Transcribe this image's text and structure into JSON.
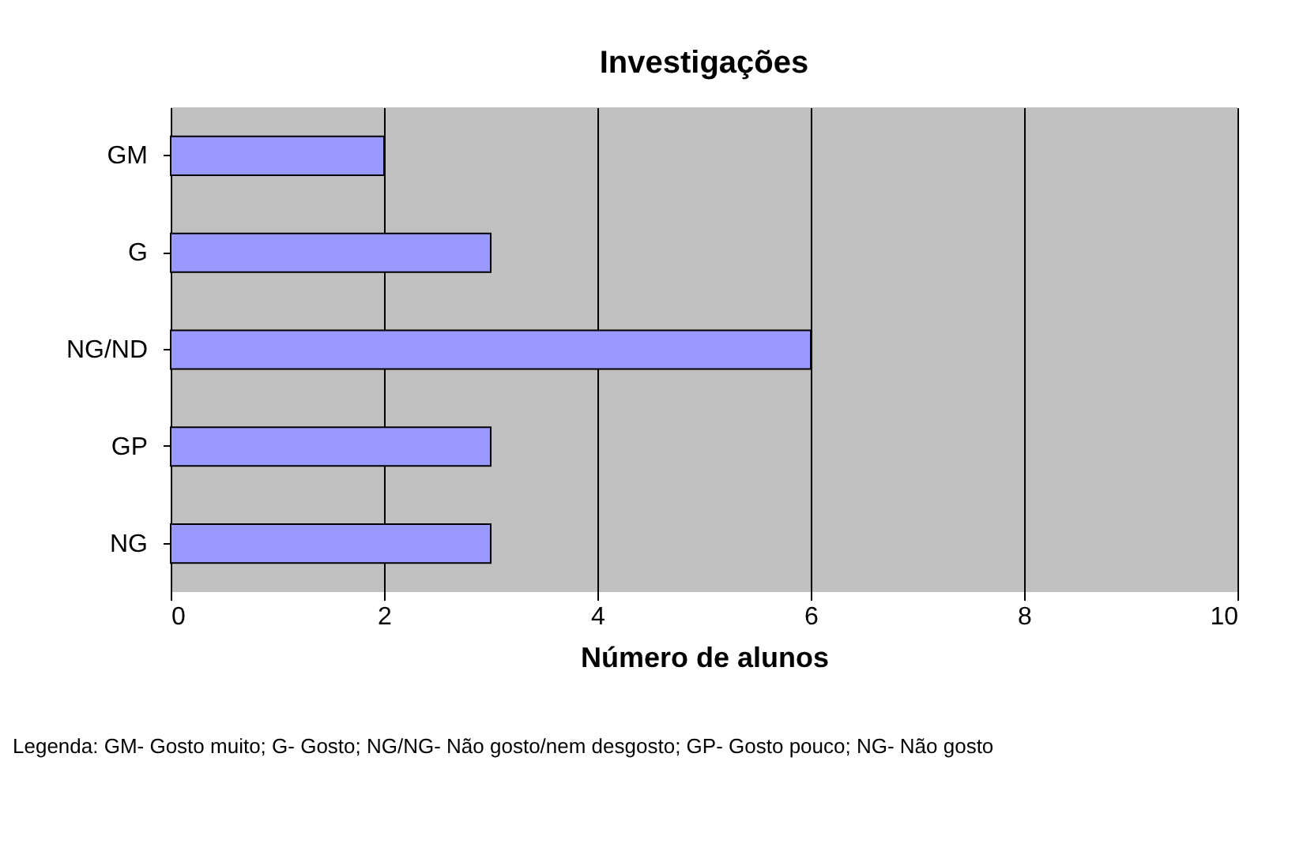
{
  "chart_data": {
    "type": "bar",
    "orientation": "horizontal",
    "title": "Investigações",
    "xlabel": "Número de alunos",
    "categories": [
      "GM",
      "G",
      "NG/ND",
      "GP",
      "NG"
    ],
    "values": [
      2,
      3,
      6,
      3,
      3
    ],
    "color": "#9999ff",
    "xlim": [
      0,
      10
    ],
    "xticks": [
      0,
      2,
      4,
      6,
      8,
      10
    ],
    "grid": "x",
    "annotations": [
      "Legenda: GM- Gosto muito; G- Gosto; NG/NG- Não gosto/nem desgosto; GP- Gosto pouco; NG- Não gosto"
    ]
  }
}
